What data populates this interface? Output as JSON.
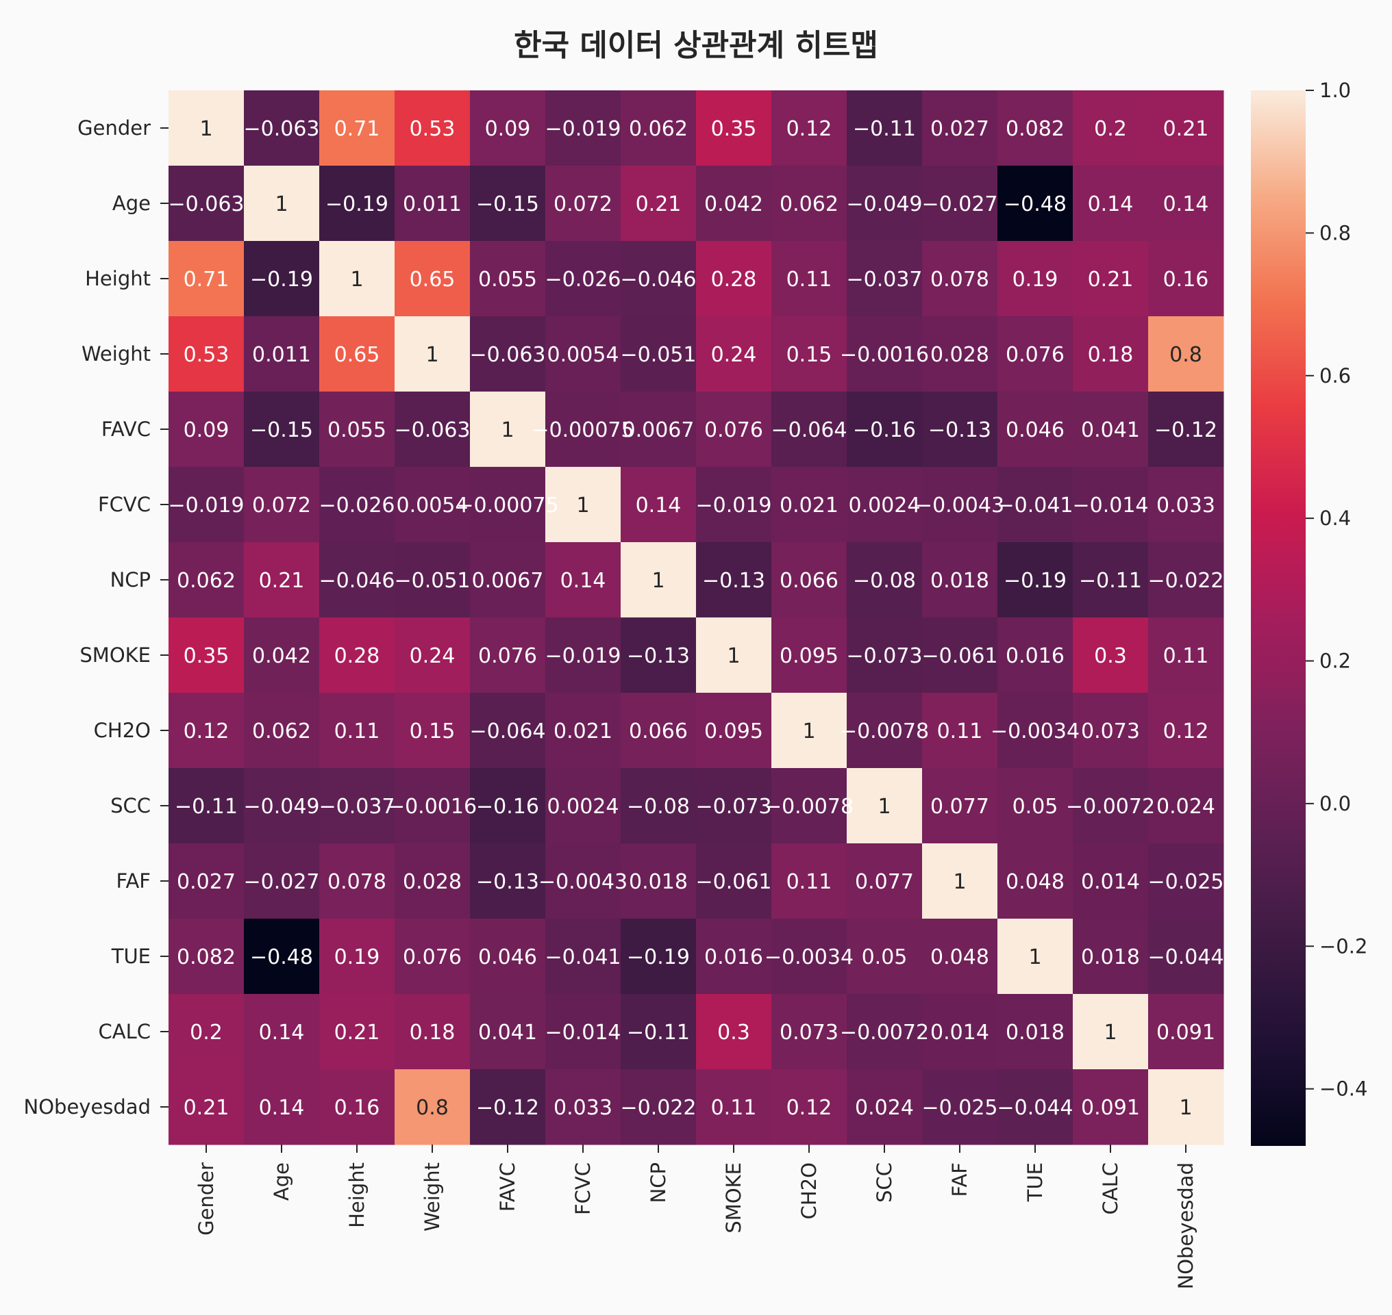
{
  "chart_data": {
    "type": "heatmap",
    "title": "한국 데이터 상관관계 히트맵",
    "variables": [
      "Gender",
      "Age",
      "Height",
      "Weight",
      "FAVC",
      "FCVC",
      "NCP",
      "SMOKE",
      "CH2O",
      "SCC",
      "FAF",
      "TUE",
      "CALC",
      "NObeyesdad"
    ],
    "values": [
      [
        1,
        -0.063,
        0.71,
        0.53,
        0.09,
        -0.019,
        0.062,
        0.35,
        0.12,
        -0.11,
        0.027,
        0.082,
        0.2,
        0.21
      ],
      [
        -0.063,
        1,
        -0.19,
        0.011,
        -0.15,
        0.072,
        0.21,
        0.042,
        0.062,
        -0.049,
        -0.027,
        -0.48,
        0.14,
        0.14
      ],
      [
        0.71,
        -0.19,
        1,
        0.65,
        0.055,
        -0.026,
        -0.046,
        0.28,
        0.11,
        -0.037,
        0.078,
        0.19,
        0.21,
        0.16
      ],
      [
        0.53,
        0.011,
        0.65,
        1,
        -0.063,
        0.0054,
        -0.051,
        0.24,
        0.15,
        -0.0016,
        0.028,
        0.076,
        0.18,
        0.8
      ],
      [
        0.09,
        -0.15,
        0.055,
        -0.063,
        1,
        -0.00075,
        0.0067,
        0.076,
        -0.064,
        -0.16,
        -0.13,
        0.046,
        0.041,
        -0.12
      ],
      [
        -0.019,
        0.072,
        -0.026,
        0.0054,
        -0.00075,
        1,
        0.14,
        -0.019,
        0.021,
        0.0024,
        -0.0043,
        -0.041,
        -0.014,
        0.033
      ],
      [
        0.062,
        0.21,
        -0.046,
        -0.051,
        0.0067,
        0.14,
        1,
        -0.13,
        0.066,
        -0.08,
        0.018,
        -0.19,
        -0.11,
        -0.022
      ],
      [
        0.35,
        0.042,
        0.28,
        0.24,
        0.076,
        -0.019,
        -0.13,
        1,
        0.095,
        -0.073,
        -0.061,
        0.016,
        0.3,
        0.11
      ],
      [
        0.12,
        0.062,
        0.11,
        0.15,
        -0.064,
        0.021,
        0.066,
        0.095,
        1,
        -0.0078,
        0.11,
        -0.0034,
        0.073,
        0.12
      ],
      [
        -0.11,
        -0.049,
        -0.037,
        -0.0016,
        -0.16,
        0.0024,
        -0.08,
        -0.073,
        -0.0078,
        1,
        0.077,
        0.05,
        -0.0072,
        0.024
      ],
      [
        0.027,
        -0.027,
        0.078,
        0.028,
        -0.13,
        -0.0043,
        0.018,
        -0.061,
        0.11,
        0.077,
        1,
        0.048,
        0.014,
        -0.025
      ],
      [
        0.082,
        -0.48,
        0.19,
        0.076,
        0.046,
        -0.041,
        -0.19,
        0.016,
        -0.0034,
        0.05,
        0.048,
        1,
        0.018,
        -0.044
      ],
      [
        0.2,
        0.14,
        0.21,
        0.18,
        0.041,
        -0.014,
        -0.11,
        0.3,
        0.073,
        -0.0072,
        0.014,
        0.018,
        1,
        0.091
      ],
      [
        0.21,
        0.14,
        0.16,
        0.8,
        -0.12,
        0.033,
        -0.022,
        0.11,
        0.12,
        0.024,
        -0.025,
        -0.044,
        0.091,
        1
      ]
    ],
    "colorbar": {
      "range": [
        -0.48,
        1.0
      ],
      "ticks": [
        1.0,
        0.8,
        0.6,
        0.4,
        0.2,
        0.0,
        -0.2,
        -0.4
      ],
      "tick_labels": [
        "1.0",
        "0.8",
        "0.6",
        "0.4",
        "0.2",
        "0.0",
        "−0.2",
        "−0.4"
      ]
    },
    "colormap": "rocket",
    "annotations": true
  }
}
